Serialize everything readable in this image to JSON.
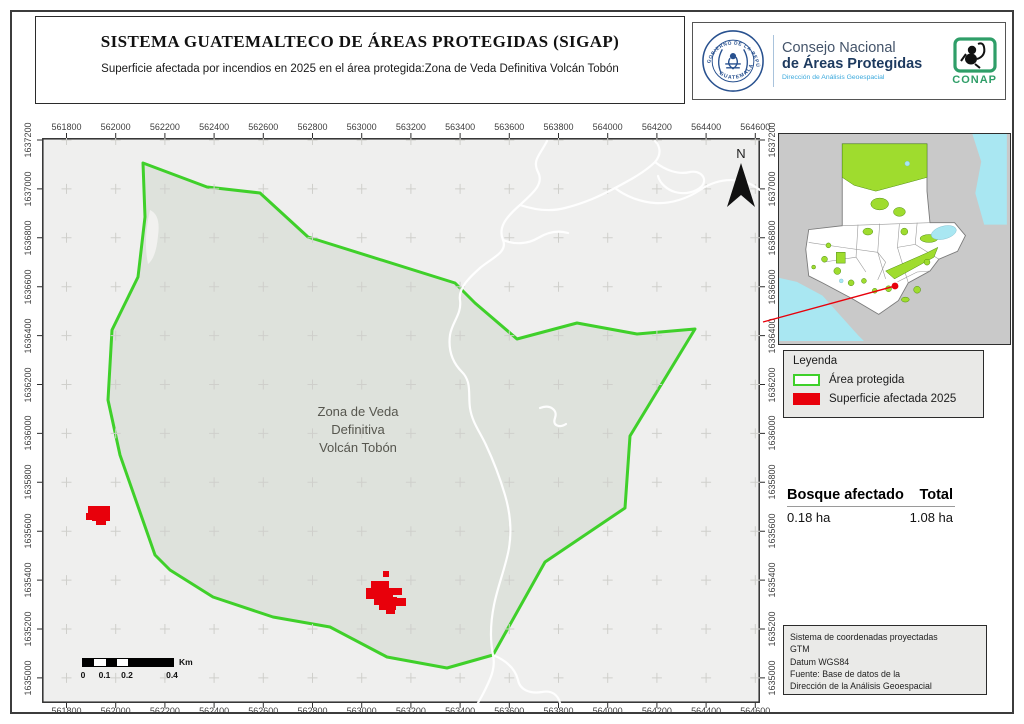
{
  "header": {
    "title": "SISTEMA GUATEMALTECO DE ÁREAS PROTEGIDAS  (SIGAP)",
    "subtitle": "Superficie afectada por incendios en 2025 en el área protegida:Zona de Veda Definitiva Volcán Tobón",
    "org": {
      "seal_arc_top": "GOBIERNO DE LA REPÚBLICA",
      "seal_arc_bottom": "GUATEMALA",
      "name_line1": "Consejo Nacional",
      "name_line2": "de Áreas Protegidas",
      "name_line3": "Dirección de Análisis Geoespacial",
      "conap": "CONAP"
    }
  },
  "map": {
    "x_ticks": [
      "561800",
      "562000",
      "562200",
      "562400",
      "562600",
      "562800",
      "563000",
      "563200",
      "563400",
      "563600",
      "563800",
      "564000",
      "564200",
      "564400",
      "564600"
    ],
    "y_ticks": [
      "1637200",
      "1637000",
      "1636800",
      "1636600",
      "1636400",
      "1636200",
      "1636000",
      "1635800",
      "1635600",
      "1635400",
      "1635200",
      "1635000"
    ],
    "area_label": [
      "Zona de Veda",
      "Definitiva",
      "Volcán Tobón"
    ],
    "north_label": "N",
    "scalebar": {
      "labels": [
        "0",
        "0.1",
        "0.2",
        "0.4"
      ],
      "unit": "Km"
    }
  },
  "legend": {
    "title": "Leyenda",
    "items": [
      {
        "label": "Área protegida",
        "type": "outline"
      },
      {
        "label": "Superficie afectada 2025",
        "type": "fill"
      }
    ]
  },
  "stats": {
    "col1": "Bosque afectado",
    "col2": "Total",
    "val1": "0.18 ha",
    "val2": "1.08 ha"
  },
  "credits": {
    "lines": [
      "Sistema de coordenadas proyectadas",
      "GTM",
      "Datum WGS84",
      "Fuente: Base de datos de la",
      "Dirección de la Análisis Geoespacial"
    ]
  },
  "colors": {
    "protected_outline": "#3fd02a",
    "affected_fill": "#e8000b",
    "map_bg": "#efefee",
    "inset_green": "#9fdc2e",
    "inset_water": "#a9e7f2",
    "inset_land_outside": "#c9c9c9",
    "seal_blue": "#28518f",
    "conap_green": "#2f9e68"
  }
}
